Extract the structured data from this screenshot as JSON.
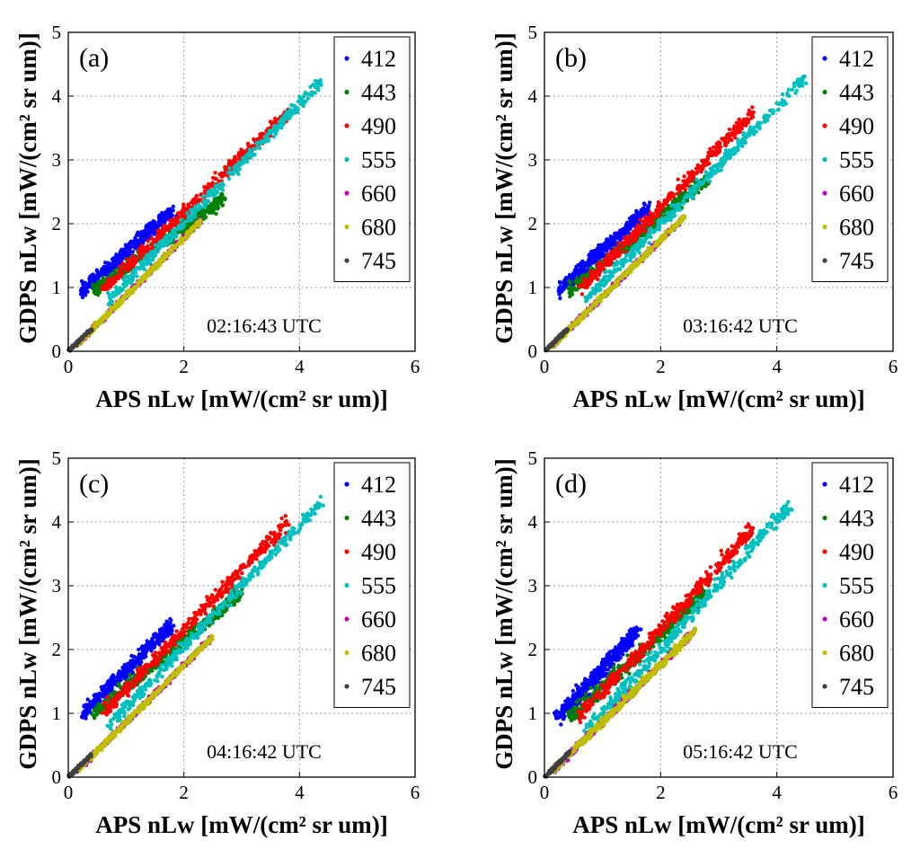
{
  "figure": {
    "xlabel": "APS nLw [mW/(cm² sr um)]",
    "ylabel": "GDPS nLw [mW/(cm² sr um)]"
  },
  "chart_data": [
    {
      "type": "scatter",
      "panel_label": "(a)",
      "annotation": "02:16:43 UTC",
      "xlabel": "APS nLw [mW/(cm² sr um)]",
      "ylabel": "GDPS nLw [mW/(cm² sr um)]",
      "xlim": [
        0,
        6
      ],
      "ylim": [
        0,
        5
      ],
      "xticks": [
        0,
        2,
        4,
        6
      ],
      "yticks": [
        0,
        1,
        2,
        3,
        4,
        5
      ],
      "grid": true,
      "legend_position": "top-right",
      "series": [
        {
          "name": "412",
          "color": "#0000ff",
          "x_range": [
            0.25,
            1.8
          ],
          "y_at_start": 0.95,
          "y_at_end": 2.2,
          "spread": 0.16
        },
        {
          "name": "443",
          "color": "#008000",
          "x_range": [
            0.45,
            2.7
          ],
          "y_at_start": 0.95,
          "y_at_end": 2.4,
          "spread": 0.15
        },
        {
          "name": "490",
          "color": "#ff0000",
          "x_range": [
            0.6,
            3.8
          ],
          "y_at_start": 0.95,
          "y_at_end": 3.75,
          "spread": 0.15
        },
        {
          "name": "555",
          "color": "#00bfbf",
          "x_range": [
            0.7,
            4.4
          ],
          "y_at_start": 0.8,
          "y_at_end": 4.25,
          "spread": 0.13
        },
        {
          "name": "660",
          "color": "#bf00bf",
          "x_range": [
            0.15,
            2.3
          ],
          "y_at_start": 0.1,
          "y_at_end": 2.05,
          "spread": 0.06
        },
        {
          "name": "680",
          "color": "#bfbf00",
          "x_range": [
            0.15,
            2.3
          ],
          "y_at_start": 0.1,
          "y_at_end": 2.05,
          "spread": 0.06
        },
        {
          "name": "745",
          "color": "#404040",
          "x_range": [
            0.0,
            0.4
          ],
          "y_at_start": 0.0,
          "y_at_end": 0.35,
          "spread": 0.04
        }
      ]
    },
    {
      "type": "scatter",
      "panel_label": "(b)",
      "annotation": "03:16:42 UTC",
      "xlabel": "APS nLw [mW/(cm² sr um)]",
      "ylabel": "GDPS nLw [mW/(cm² sr um)]",
      "xlim": [
        0,
        6
      ],
      "ylim": [
        0,
        5
      ],
      "xticks": [
        0,
        2,
        4,
        6
      ],
      "yticks": [
        0,
        1,
        2,
        3,
        4,
        5
      ],
      "grid": true,
      "legend_position": "top-right",
      "series": [
        {
          "name": "412",
          "color": "#0000ff",
          "x_range": [
            0.25,
            1.8
          ],
          "y_at_start": 0.95,
          "y_at_end": 2.25,
          "spread": 0.16
        },
        {
          "name": "443",
          "color": "#008000",
          "x_range": [
            0.45,
            2.8
          ],
          "y_at_start": 0.95,
          "y_at_end": 2.7,
          "spread": 0.15
        },
        {
          "name": "490",
          "color": "#ff0000",
          "x_range": [
            0.6,
            3.6
          ],
          "y_at_start": 0.95,
          "y_at_end": 3.75,
          "spread": 0.15
        },
        {
          "name": "555",
          "color": "#00bfbf",
          "x_range": [
            0.7,
            4.5
          ],
          "y_at_start": 0.8,
          "y_at_end": 4.3,
          "spread": 0.13
        },
        {
          "name": "660",
          "color": "#bf00bf",
          "x_range": [
            0.15,
            2.4
          ],
          "y_at_start": 0.1,
          "y_at_end": 2.1,
          "spread": 0.06
        },
        {
          "name": "680",
          "color": "#bfbf00",
          "x_range": [
            0.15,
            2.4
          ],
          "y_at_start": 0.1,
          "y_at_end": 2.1,
          "spread": 0.06
        },
        {
          "name": "745",
          "color": "#404040",
          "x_range": [
            0.0,
            0.4
          ],
          "y_at_start": 0.0,
          "y_at_end": 0.35,
          "spread": 0.04
        }
      ]
    },
    {
      "type": "scatter",
      "panel_label": "(c)",
      "annotation": "04:16:42 UTC",
      "xlabel": "APS nLw [mW/(cm² sr um)]",
      "ylabel": "GDPS nLw [mW/(cm² sr um)]",
      "xlim": [
        0,
        6
      ],
      "ylim": [
        0,
        5
      ],
      "xticks": [
        0,
        2,
        4,
        6
      ],
      "yticks": [
        0,
        1,
        2,
        3,
        4,
        5
      ],
      "grid": true,
      "legend_position": "top-right",
      "series": [
        {
          "name": "412",
          "color": "#0000ff",
          "x_range": [
            0.25,
            1.8
          ],
          "y_at_start": 1.0,
          "y_at_end": 2.4,
          "spread": 0.17
        },
        {
          "name": "443",
          "color": "#008000",
          "x_range": [
            0.45,
            3.0
          ],
          "y_at_start": 1.0,
          "y_at_end": 2.9,
          "spread": 0.15
        },
        {
          "name": "490",
          "color": "#ff0000",
          "x_range": [
            0.6,
            3.8
          ],
          "y_at_start": 1.0,
          "y_at_end": 4.0,
          "spread": 0.15
        },
        {
          "name": "555",
          "color": "#00bfbf",
          "x_range": [
            0.7,
            4.4
          ],
          "y_at_start": 0.8,
          "y_at_end": 4.35,
          "spread": 0.13
        },
        {
          "name": "660",
          "color": "#bf00bf",
          "x_range": [
            0.15,
            2.5
          ],
          "y_at_start": 0.1,
          "y_at_end": 2.2,
          "spread": 0.06
        },
        {
          "name": "680",
          "color": "#bfbf00",
          "x_range": [
            0.15,
            2.5
          ],
          "y_at_start": 0.1,
          "y_at_end": 2.2,
          "spread": 0.06
        },
        {
          "name": "745",
          "color": "#404040",
          "x_range": [
            0.0,
            0.4
          ],
          "y_at_start": 0.0,
          "y_at_end": 0.35,
          "spread": 0.04
        }
      ]
    },
    {
      "type": "scatter",
      "panel_label": "(d)",
      "annotation": "05:16:42 UTC",
      "xlabel": "APS nLw [mW/(cm² sr um)]",
      "ylabel": "GDPS nLw [mW/(cm² sr um)]",
      "xlim": [
        0,
        6
      ],
      "ylim": [
        0,
        5
      ],
      "xticks": [
        0,
        2,
        4,
        6
      ],
      "yticks": [
        0,
        1,
        2,
        3,
        4,
        5
      ],
      "grid": true,
      "legend_position": "top-right",
      "series": [
        {
          "name": "412",
          "color": "#0000ff",
          "x_range": [
            0.25,
            1.6
          ],
          "y_at_start": 0.95,
          "y_at_end": 2.3,
          "spread": 0.2
        },
        {
          "name": "443",
          "color": "#008000",
          "x_range": [
            0.45,
            2.8
          ],
          "y_at_start": 0.95,
          "y_at_end": 2.9,
          "spread": 0.17
        },
        {
          "name": "490",
          "color": "#ff0000",
          "x_range": [
            0.6,
            3.6
          ],
          "y_at_start": 0.95,
          "y_at_end": 3.9,
          "spread": 0.17
        },
        {
          "name": "555",
          "color": "#00bfbf",
          "x_range": [
            0.7,
            4.2
          ],
          "y_at_start": 0.7,
          "y_at_end": 4.25,
          "spread": 0.16
        },
        {
          "name": "660",
          "color": "#bf00bf",
          "x_range": [
            0.15,
            2.6
          ],
          "y_at_start": 0.1,
          "y_at_end": 2.3,
          "spread": 0.08
        },
        {
          "name": "680",
          "color": "#bfbf00",
          "x_range": [
            0.15,
            2.6
          ],
          "y_at_start": 0.1,
          "y_at_end": 2.3,
          "spread": 0.08
        },
        {
          "name": "745",
          "color": "#404040",
          "x_range": [
            0.0,
            0.45
          ],
          "y_at_start": 0.0,
          "y_at_end": 0.4,
          "spread": 0.05
        }
      ]
    }
  ]
}
